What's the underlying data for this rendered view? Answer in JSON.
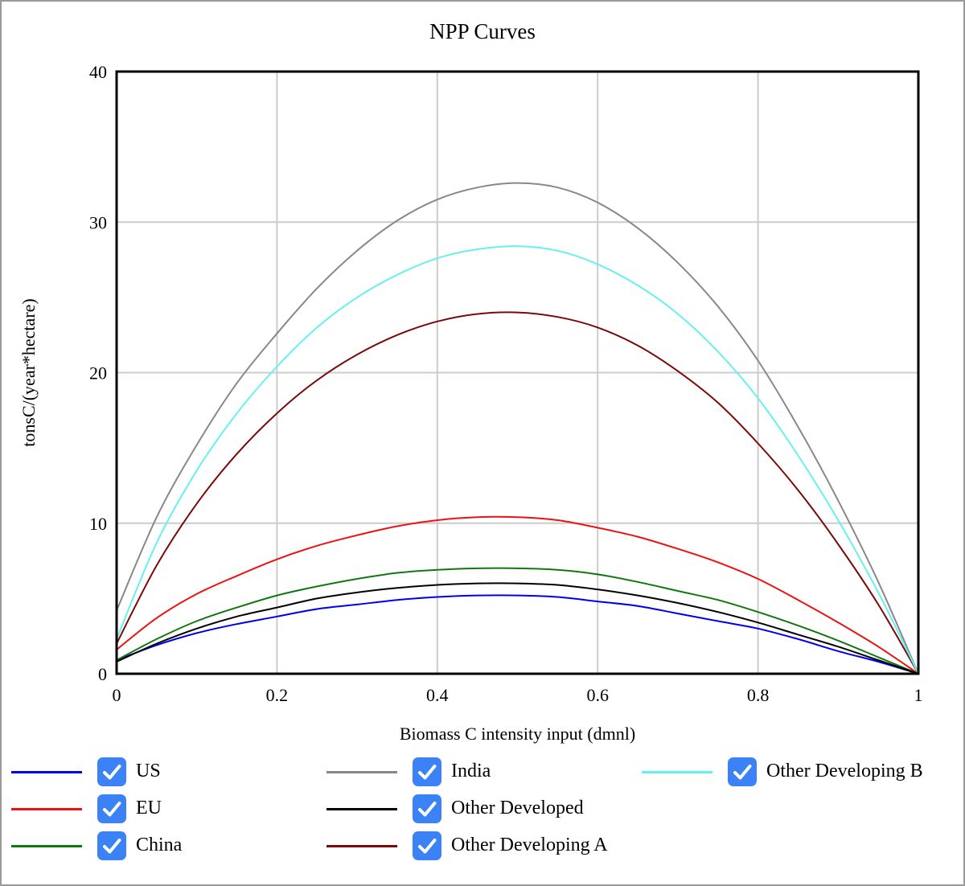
{
  "chart_data": {
    "type": "line",
    "title": "NPP Curves",
    "xlabel": "Biomass C intensity input (dmnl)",
    "ylabel": "tonsC/(year*hectare)",
    "xlim": [
      0,
      1
    ],
    "ylim": [
      0,
      40
    ],
    "xticks": [
      "0",
      "0.2",
      "0.4",
      "0.6",
      "0.8",
      "1"
    ],
    "yticks": [
      "0",
      "10",
      "20",
      "30",
      "40"
    ],
    "grid": true,
    "legend_position": "bottom",
    "x": [
      0,
      0.05,
      0.1,
      0.15,
      0.2,
      0.25,
      0.3,
      0.35,
      0.4,
      0.45,
      0.5,
      0.55,
      0.6,
      0.65,
      0.7,
      0.75,
      0.8,
      0.85,
      0.9,
      0.95,
      1
    ],
    "series": [
      {
        "name": "US",
        "color": "#0000ee",
        "values": [
          0.9,
          1.9,
          2.7,
          3.3,
          3.8,
          4.3,
          4.6,
          4.9,
          5.1,
          5.2,
          5.2,
          5.1,
          4.8,
          4.5,
          4.0,
          3.5,
          3.0,
          2.3,
          1.5,
          0.8,
          0.0
        ]
      },
      {
        "name": "EU",
        "color": "#ee1111",
        "values": [
          1.6,
          3.7,
          5.3,
          6.5,
          7.6,
          8.5,
          9.2,
          9.8,
          10.2,
          10.4,
          10.4,
          10.2,
          9.7,
          9.1,
          8.3,
          7.4,
          6.3,
          4.9,
          3.4,
          1.8,
          0.0
        ]
      },
      {
        "name": "China",
        "color": "#117711",
        "values": [
          0.9,
          2.3,
          3.5,
          4.4,
          5.2,
          5.8,
          6.3,
          6.7,
          6.9,
          7.0,
          7.0,
          6.9,
          6.6,
          6.1,
          5.5,
          4.9,
          4.1,
          3.2,
          2.2,
          1.1,
          0.0
        ]
      },
      {
        "name": "India",
        "color": "#888888",
        "values": [
          4.2,
          10.4,
          15.2,
          19.3,
          22.6,
          25.6,
          28.1,
          30.1,
          31.5,
          32.3,
          32.6,
          32.3,
          31.3,
          29.6,
          27.3,
          24.4,
          20.8,
          16.4,
          11.5,
          6.1,
          0.0
        ]
      },
      {
        "name": "Other Developed",
        "color": "#000000",
        "values": [
          0.8,
          2.0,
          3.0,
          3.8,
          4.4,
          5.0,
          5.4,
          5.7,
          5.9,
          6.0,
          6.0,
          5.9,
          5.6,
          5.2,
          4.7,
          4.1,
          3.4,
          2.6,
          1.8,
          0.9,
          0.0
        ]
      },
      {
        "name": "Other Developing A",
        "color": "#7a0a0a",
        "values": [
          2.0,
          7.2,
          11.3,
          14.6,
          17.3,
          19.5,
          21.2,
          22.5,
          23.4,
          23.9,
          24.0,
          23.7,
          23.0,
          21.8,
          20.1,
          18.0,
          15.3,
          12.2,
          8.6,
          4.6,
          0.0
        ]
      },
      {
        "name": "Other Developing B",
        "color": "#66f0f0",
        "values": [
          2.3,
          8.7,
          13.5,
          17.3,
          20.4,
          23.0,
          25.0,
          26.5,
          27.6,
          28.2,
          28.4,
          28.1,
          27.2,
          25.8,
          23.9,
          21.4,
          18.3,
          14.5,
          10.2,
          5.4,
          0.0
        ]
      }
    ]
  }
}
